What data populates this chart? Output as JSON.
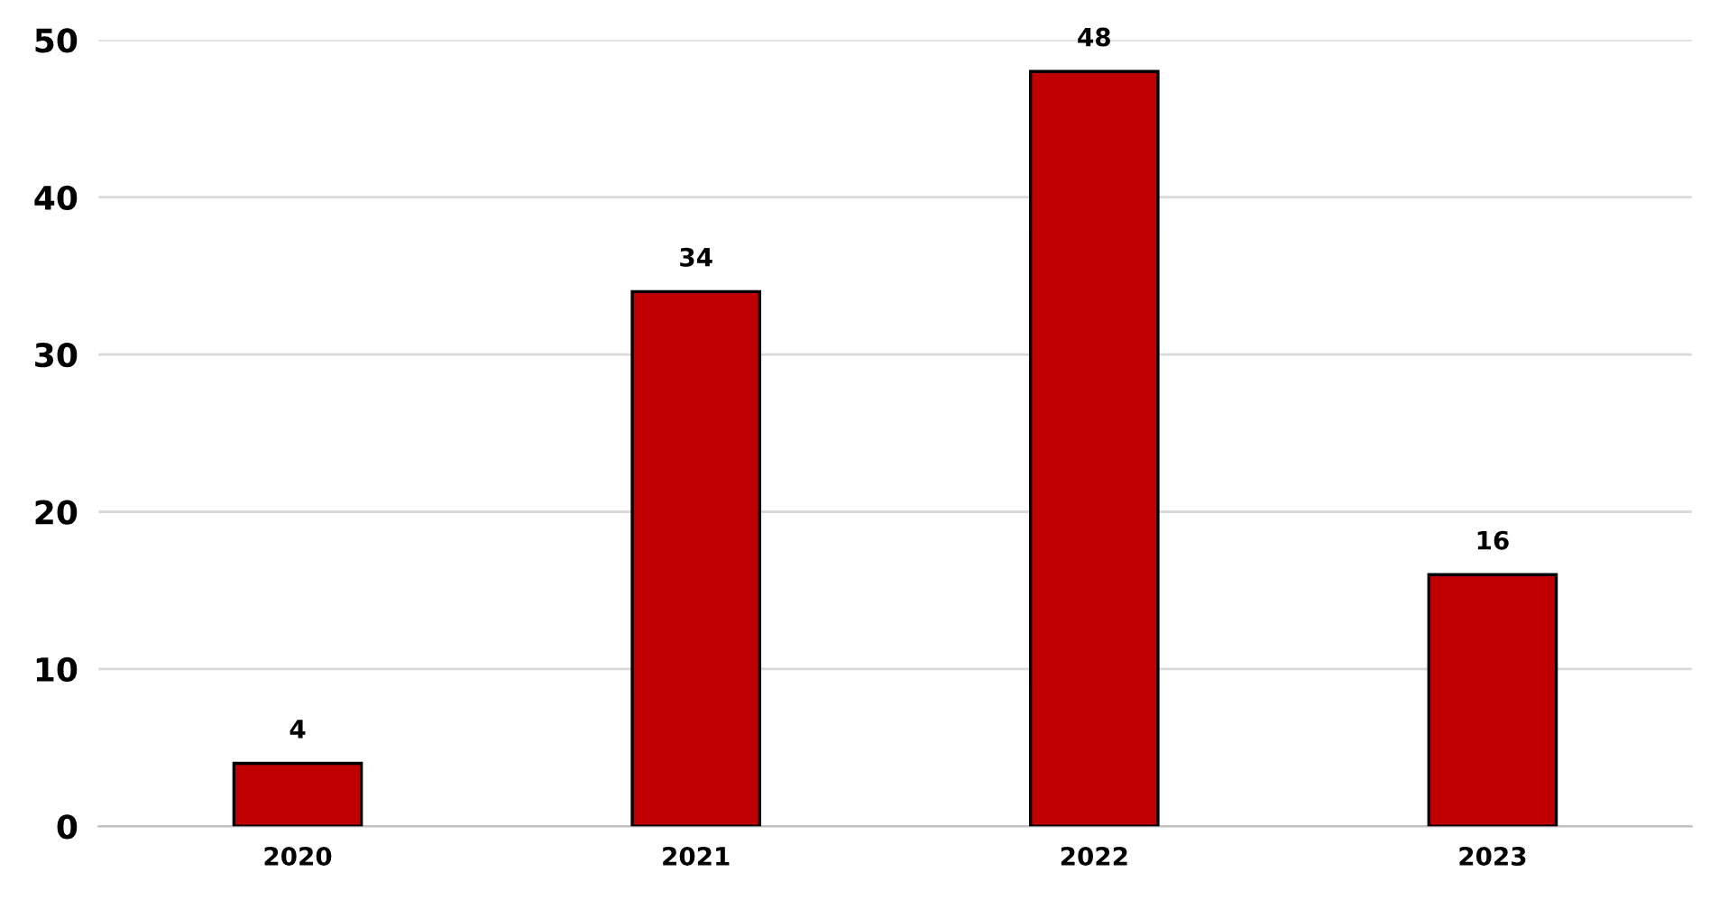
{
  "chart_data": {
    "type": "bar",
    "categories": [
      "2020",
      "2021",
      "2022",
      "2023"
    ],
    "values": [
      4,
      34,
      48,
      16
    ],
    "color": "#c00000",
    "ylim": [
      0,
      50
    ],
    "yticks": [
      0,
      10,
      20,
      30,
      40,
      50
    ],
    "grid": "y",
    "data_labels": true
  }
}
